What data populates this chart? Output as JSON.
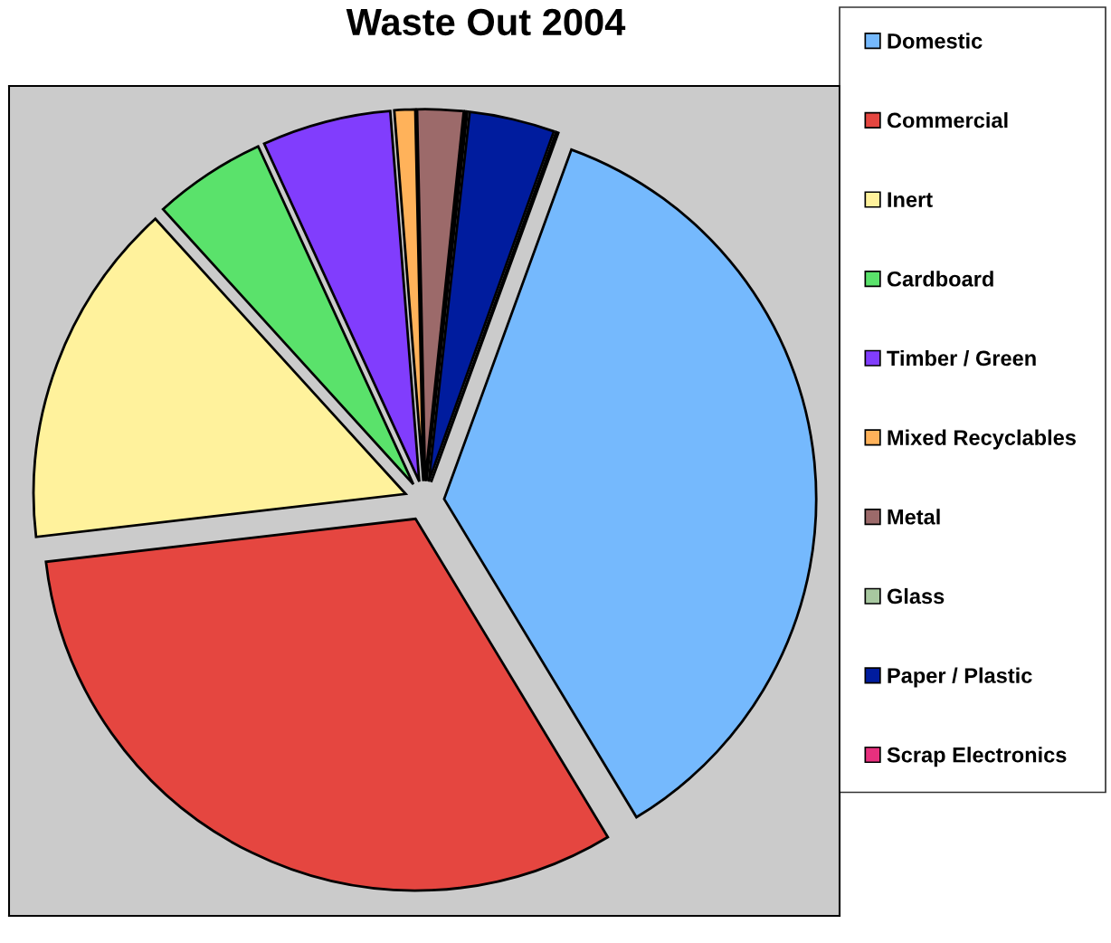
{
  "chart_data": {
    "type": "pie",
    "title": "Waste Out 2004",
    "categories": [
      "Domestic",
      "Commercial",
      "Inert",
      "Cardboard",
      "Timber / Green",
      "Mixed Recyclables",
      "Metal",
      "Glass",
      "Paper / Plastic",
      "Scrap Electronics"
    ],
    "values": [
      35.8,
      31.8,
      15.1,
      4.9,
      5.6,
      0.9,
      2.0,
      0.1,
      3.7,
      0.1
    ],
    "colors": [
      "#75b9fd",
      "#e54640",
      "#fff29c",
      "#5ae26b",
      "#813dfd",
      "#ffb25a",
      "#9c6a6a",
      "#a8c8a0",
      "#001c9e",
      "#e8307e"
    ],
    "legend": "right"
  }
}
